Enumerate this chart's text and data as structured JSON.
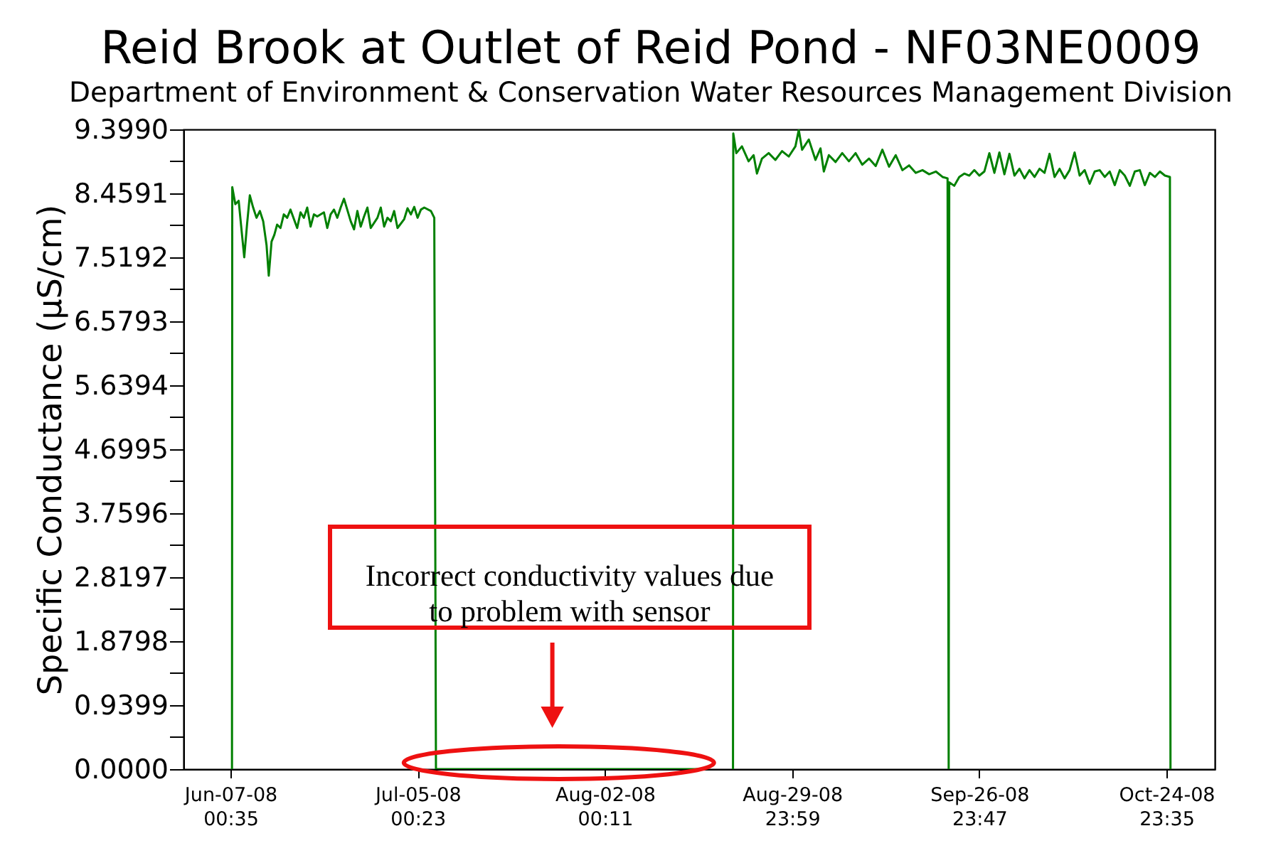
{
  "chart_data": {
    "type": "line",
    "title": "Reid Brook at Outlet of Reid Pond - NF03NE0009",
    "subtitle": "Department of Environment & Conservation Water Resources Management Division",
    "ylabel": "Specific Conductance (µS/cm)",
    "annotations": [
      "Incorrect conductivity values due\nto problem with sensor"
    ],
    "xlim": [
      "2008-05-31T00:00",
      "2008-11-01T05:00"
    ],
    "xticks": [
      {
        "value": "2008-06-07T00:35",
        "label": "Jun-07-08\n00:35"
      },
      {
        "value": "2008-07-05T00:23",
        "label": "Jul-05-08\n00:23"
      },
      {
        "value": "2008-08-02T00:11",
        "label": "Aug-02-08\n00:11"
      },
      {
        "value": "2008-08-29T23:59",
        "label": "Aug-29-08\n23:59"
      },
      {
        "value": "2008-09-26T23:47",
        "label": "Sep-26-08\n23:47"
      },
      {
        "value": "2008-10-24T23:35",
        "label": "Oct-24-08\n23:35"
      }
    ],
    "ylim": [
      0,
      9.399
    ],
    "yticks": [
      {
        "value": 0,
        "label": "0.0000"
      },
      {
        "value": 0.47,
        "label": null
      },
      0.9399,
      {
        "value": 1.41,
        "label": null
      },
      1.8798,
      {
        "value": 2.35,
        "label": null
      },
      2.8197,
      {
        "value": 3.29,
        "label": null
      },
      3.7596,
      {
        "value": 4.23,
        "label": null
      },
      4.6995,
      {
        "value": 5.17,
        "label": null
      },
      5.6394,
      {
        "value": 6.11,
        "label": null
      },
      6.5793,
      {
        "value": 7.05,
        "label": null
      },
      7.5192,
      {
        "value": 7.99,
        "label": null
      },
      8.4591,
      {
        "value": 8.93,
        "label": null
      },
      {
        "value": 9.399,
        "label": "9.3990"
      }
    ],
    "grid": false,
    "line_style": "solid",
    "x": [
      "2008-06-07T06:00",
      "2008-06-07T07:00",
      "2008-06-07T18:00",
      "2008-06-08T06:00",
      "2008-06-08T18:00",
      "2008-06-09T02:00",
      "2008-06-09T12:00",
      "2008-06-09T22:00",
      "2008-06-10T10:00",
      "2008-06-10T22:00",
      "2008-06-11T10:00",
      "2008-06-11T22:00",
      "2008-06-12T10:00",
      "2008-06-12T18:00",
      "2008-06-13T04:00",
      "2008-06-13T14:00",
      "2008-06-14T00:00",
      "2008-06-14T12:00",
      "2008-06-15T00:00",
      "2008-06-15T12:00",
      "2008-06-16T00:00",
      "2008-06-17T00:00",
      "2008-06-17T12:00",
      "2008-06-18T00:00",
      "2008-06-18T12:00",
      "2008-06-19T00:00",
      "2008-06-19T12:00",
      "2008-06-20T00:00",
      "2008-06-21T00:00",
      "2008-06-21T12:00",
      "2008-06-22T00:00",
      "2008-06-22T12:00",
      "2008-06-23T00:00",
      "2008-06-23T12:00",
      "2008-06-24T00:00",
      "2008-06-25T00:00",
      "2008-06-25T12:00",
      "2008-06-26T00:00",
      "2008-06-26T12:00",
      "2008-06-27T00:00",
      "2008-06-27T12:00",
      "2008-06-28T00:00",
      "2008-06-29T00:00",
      "2008-06-29T12:00",
      "2008-06-30T00:00",
      "2008-06-30T12:00",
      "2008-07-01T00:00",
      "2008-07-01T12:00",
      "2008-07-02T00:00",
      "2008-07-03T00:00",
      "2008-07-03T12:00",
      "2008-07-04T00:00",
      "2008-07-04T12:00",
      "2008-07-05T00:00",
      "2008-07-05T12:00",
      "2008-07-06T00:00",
      "2008-07-07T00:00",
      "2008-07-07T12:00",
      "2008-07-07T18:00",
      "2008-08-17T06:00",
      "2008-08-19T00:00",
      "2008-08-21T04:00",
      "2008-08-21T05:00",
      "2008-08-21T16:00",
      "2008-08-22T12:00",
      "2008-08-23T12:00",
      "2008-08-24T06:00",
      "2008-08-24T18:00",
      "2008-08-25T12:00",
      "2008-08-26T12:00",
      "2008-08-27T12:00",
      "2008-08-28T12:00",
      "2008-08-29T12:00",
      "2008-08-30T12:00",
      "2008-08-31T00:00",
      "2008-08-31T12:00",
      "2008-09-01T12:00",
      "2008-09-02T12:00",
      "2008-09-03T06:00",
      "2008-09-03T18:00",
      "2008-09-04T12:00",
      "2008-09-05T12:00",
      "2008-09-06T12:00",
      "2008-09-07T12:00",
      "2008-09-08T12:00",
      "2008-09-09T12:00",
      "2008-09-10T12:00",
      "2008-09-11T12:00",
      "2008-09-12T12:00",
      "2008-09-13T12:00",
      "2008-09-14T12:00",
      "2008-09-15T12:00",
      "2008-09-16T12:00",
      "2008-09-17T12:00",
      "2008-09-18T12:00",
      "2008-09-19T12:00",
      "2008-09-20T12:00",
      "2008-09-21T12:00",
      "2008-09-22T06:00",
      "2008-09-22T08:00",
      "2008-09-22T10:00",
      "2008-09-22T12:00",
      "2008-09-23T06:00",
      "2008-09-24T00:00",
      "2008-09-24T18:00",
      "2008-09-25T12:00",
      "2008-09-26T06:00",
      "2008-09-27T00:00",
      "2008-09-27T18:00",
      "2008-09-28T12:00",
      "2008-09-29T06:00",
      "2008-09-30T00:00",
      "2008-09-30T18:00",
      "2008-10-01T12:00",
      "2008-10-02T06:00",
      "2008-10-03T00:00",
      "2008-10-03T18:00",
      "2008-10-04T12:00",
      "2008-10-05T06:00",
      "2008-10-06T00:00",
      "2008-10-06T18:00",
      "2008-10-07T12:00",
      "2008-10-08T06:00",
      "2008-10-09T00:00",
      "2008-10-09T18:00",
      "2008-10-10T12:00",
      "2008-10-11T06:00",
      "2008-10-12T00:00",
      "2008-10-12T18:00",
      "2008-10-13T12:00",
      "2008-10-14T06:00",
      "2008-10-15T00:00",
      "2008-10-15T18:00",
      "2008-10-16T12:00",
      "2008-10-17T06:00",
      "2008-10-18T00:00",
      "2008-10-18T18:00",
      "2008-10-19T12:00",
      "2008-10-20T06:00",
      "2008-10-21T00:00",
      "2008-10-21T18:00",
      "2008-10-22T12:00",
      "2008-10-23T06:00",
      "2008-10-24T00:00",
      "2008-10-24T18:00",
      "2008-10-25T12:00",
      "2008-10-25T14:00"
    ],
    "series": [
      {
        "color": "#008000",
        "values": [
          0,
          8.55,
          8.3,
          8.35,
          7.85,
          7.52,
          8.0,
          8.43,
          8.25,
          8.1,
          8.2,
          8.05,
          7.7,
          7.25,
          7.75,
          7.85,
          8.0,
          7.95,
          8.15,
          8.1,
          8.22,
          7.95,
          8.18,
          8.1,
          8.25,
          7.97,
          8.15,
          8.12,
          8.18,
          7.95,
          8.15,
          8.22,
          8.1,
          8.25,
          8.38,
          8.05,
          7.93,
          8.2,
          7.97,
          8.12,
          8.25,
          7.95,
          8.1,
          8.25,
          7.97,
          8.1,
          8.05,
          8.2,
          7.95,
          8.08,
          8.24,
          8.15,
          8.26,
          8.1,
          8.22,
          8.25,
          8.2,
          8.1,
          0,
          0,
          null,
          0,
          9.34,
          9.05,
          9.15,
          8.93,
          9.02,
          8.75,
          8.97,
          9.05,
          8.95,
          9.08,
          9.0,
          9.15,
          9.39,
          9.1,
          9.25,
          8.95,
          9.12,
          8.78,
          9.02,
          8.92,
          9.05,
          8.93,
          9.05,
          8.88,
          8.97,
          8.86,
          9.1,
          8.85,
          9.02,
          8.8,
          8.87,
          8.76,
          8.8,
          8.74,
          8.78,
          8.7,
          8.68,
          4.45,
          0,
          8.62,
          8.57,
          8.7,
          8.75,
          8.72,
          8.8,
          8.72,
          8.78,
          9.05,
          8.76,
          9.06,
          8.74,
          9.04,
          8.72,
          8.82,
          8.68,
          8.8,
          8.7,
          8.82,
          8.76,
          9.04,
          8.7,
          8.82,
          8.68,
          8.8,
          9.06,
          8.72,
          8.8,
          8.6,
          8.78,
          8.8,
          8.7,
          8.78,
          8.58,
          8.8,
          8.72,
          8.57,
          8.78,
          8.8,
          8.58,
          8.76,
          8.7,
          8.78,
          8.72,
          8.7,
          0
        ]
      }
    ]
  }
}
